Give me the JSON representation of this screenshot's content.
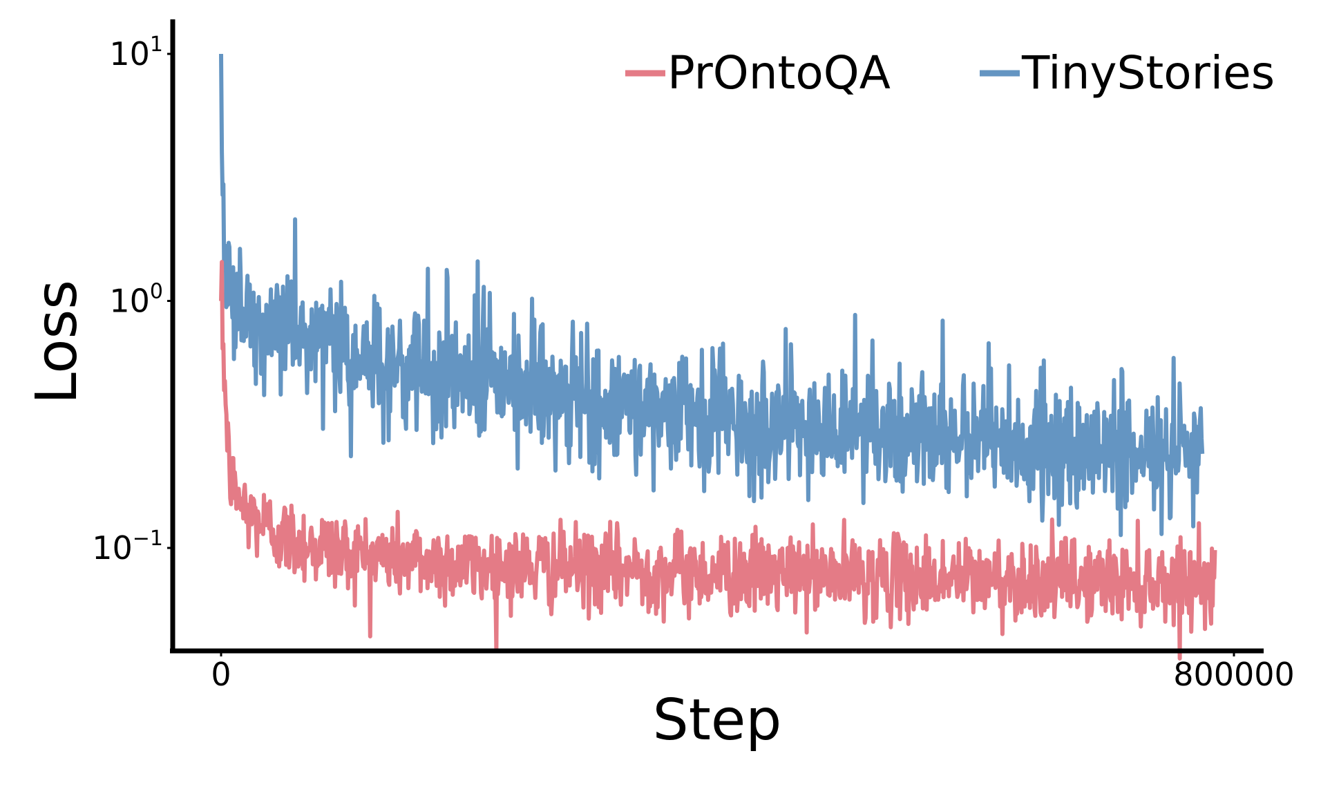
{
  "chart_data": {
    "type": "line",
    "title": "",
    "xlabel": "Step",
    "ylabel": "Loss",
    "yscale": "log",
    "xlim": [
      -60000,
      820000
    ],
    "ylim": [
      0.041,
      13.5
    ],
    "grid": false,
    "legend_position": "top-right",
    "x_ticks": [
      {
        "value": 0,
        "label": "0"
      },
      {
        "value": 800000,
        "label": "800000"
      }
    ],
    "y_ticks": [
      {
        "value": 10,
        "label_base": "10",
        "label_exp": "1"
      },
      {
        "value": 1,
        "label_base": "10",
        "label_exp": "0"
      },
      {
        "value": 0.1,
        "label_base": "10",
        "label_exp": "−1"
      }
    ],
    "series": [
      {
        "name": "PrOntoQA",
        "color": "#e47b86",
        "x_end": 785000,
        "sample_count": 1300,
        "start_value": 1.0,
        "noise": 0.18,
        "trend": [
          [
            0,
            1.0
          ],
          [
            2000,
            0.6
          ],
          [
            4000,
            0.35
          ],
          [
            6000,
            0.22
          ],
          [
            10000,
            0.17
          ],
          [
            20000,
            0.14
          ],
          [
            50000,
            0.11
          ],
          [
            100000,
            0.095
          ],
          [
            200000,
            0.085
          ],
          [
            400000,
            0.079
          ],
          [
            600000,
            0.075
          ],
          [
            785000,
            0.073
          ]
        ]
      },
      {
        "name": "TinyStories",
        "color": "#6495c2",
        "x_end": 775000,
        "sample_count": 1300,
        "start_value": 10.0,
        "noise": 0.25,
        "trend": [
          [
            0,
            10.0
          ],
          [
            1000,
            3.0
          ],
          [
            3000,
            1.2
          ],
          [
            10000,
            0.95
          ],
          [
            30000,
            0.82
          ],
          [
            100000,
            0.62
          ],
          [
            200000,
            0.48
          ],
          [
            300000,
            0.39
          ],
          [
            400000,
            0.33
          ],
          [
            500000,
            0.29
          ],
          [
            600000,
            0.27
          ],
          [
            700000,
            0.25
          ],
          [
            775000,
            0.24
          ]
        ]
      }
    ]
  }
}
